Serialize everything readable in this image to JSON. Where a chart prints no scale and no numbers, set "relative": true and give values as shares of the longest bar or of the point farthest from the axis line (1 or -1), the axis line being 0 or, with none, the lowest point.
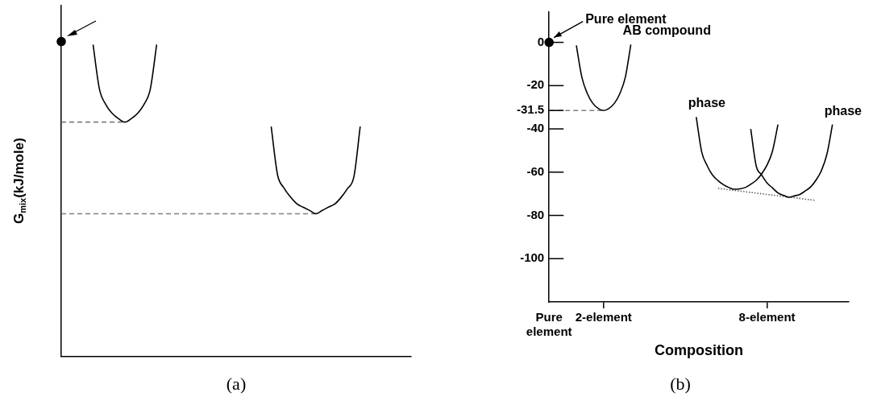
{
  "chart_data": [
    {
      "type": "line",
      "title": "(a)",
      "ylabel": "G$_{mix}$(kJ/mole)",
      "relative": true,
      "tick_labels": false,
      "marker": "none",
      "line_style": "solid",
      "categories": [
        null,
        null,
        null,
        null,
        null,
        null,
        null,
        null,
        null,
        null,
        null,
        null,
        null,
        null,
        null,
        null,
        null,
        null,
        null,
        null,
        null,
        null,
        null,
        null,
        null,
        null,
        null,
        null,
        null,
        null,
        null,
        null,
        null,
        null,
        null,
        null,
        null,
        null,
        null,
        null,
        null,
        null,
        null,
        null,
        null,
        null,
        null,
        null,
        null,
        null,
        null,
        null,
        null,
        null,
        null,
        null
      ],
      "series": [
        {
          "marker": "circle",
          "color": "#000000",
          "values": [
            1,
            null,
            null,
            null,
            null,
            null,
            null,
            null,
            null,
            null,
            null,
            null,
            null,
            null,
            null,
            null,
            null,
            null,
            null,
            null,
            null,
            null,
            null,
            null,
            null,
            null,
            null,
            null,
            null,
            null,
            null,
            null,
            null,
            null,
            null,
            null,
            null,
            null,
            null,
            null,
            null,
            null,
            null,
            null,
            null,
            null,
            null,
            null,
            null,
            null,
            null,
            null,
            null,
            null,
            null,
            null
          ]
        },
        {
          "color": "#000000",
          "values": [
            null,
            null,
            null,
            null,
            null,
            0.99,
            0.849,
            0.8,
            0.772,
            0.755,
            0.744,
            0.755,
            0.772,
            0.8,
            0.849,
            0.99,
            null,
            null,
            null,
            null,
            null,
            null,
            null,
            null,
            null,
            null,
            null,
            null,
            null,
            null,
            null,
            null,
            null,
            null,
            null,
            null,
            null,
            null,
            null,
            null,
            null,
            null,
            null,
            null,
            null,
            null,
            null,
            null,
            null,
            null,
            null,
            null,
            null,
            null,
            null,
            null
          ]
        },
        {
          "color": "#000000",
          "values": [
            null,
            null,
            null,
            null,
            null,
            null,
            null,
            null,
            null,
            null,
            null,
            null,
            null,
            null,
            null,
            null,
            null,
            null,
            null,
            null,
            null,
            null,
            null,
            null,
            null,
            null,
            null,
            null,
            null,
            null,
            null,
            null,
            null,
            0.73,
            0.577,
            0.535,
            0.507,
            0.485,
            0.474,
            0.464,
            0.453,
            0.463,
            0.474,
            0.484,
            0.505,
            0.533,
            0.57,
            0.73,
            null,
            null,
            null,
            null,
            null,
            null,
            null,
            null
          ]
        },
        {
          "color": "#808080",
          "line_style": "dashed",
          "values": [
            0.744,
            null,
            null,
            null,
            null,
            null,
            null,
            null,
            null,
            null,
            0.744,
            null,
            null,
            null,
            null,
            null,
            null,
            null,
            null,
            null,
            null,
            null,
            null,
            null,
            null,
            null,
            null,
            null,
            null,
            null,
            null,
            null,
            null,
            null,
            null,
            null,
            null,
            null,
            null,
            null,
            null,
            null,
            null,
            null,
            null,
            null,
            null,
            null,
            null,
            null,
            null,
            null,
            null,
            null,
            null,
            null
          ]
        },
        {
          "color": "#808080",
          "line_style": "dashed",
          "values": [
            0.453,
            null,
            null,
            null,
            null,
            null,
            null,
            null,
            null,
            null,
            null,
            null,
            null,
            null,
            null,
            null,
            null,
            null,
            null,
            null,
            null,
            null,
            null,
            null,
            null,
            null,
            null,
            null,
            null,
            null,
            null,
            null,
            null,
            null,
            null,
            null,
            null,
            null,
            null,
            null,
            0.453,
            null,
            null,
            null,
            null,
            null,
            null,
            null,
            null,
            null,
            null,
            null,
            null,
            null,
            null,
            null
          ]
        }
      ]
    },
    {
      "type": "line",
      "title": "(b)",
      "xlabel": "Composition",
      "ylim": [
        -120,
        14
      ],
      "yticks": [
        0,
        -20,
        -31.5,
        -40,
        -60,
        -80,
        -100
      ],
      "marker": "none",
      "line_style": "solid",
      "categories": [
        "Pure element",
        null,
        null,
        null,
        null,
        null,
        null,
        null,
        null,
        null,
        "2-element",
        null,
        null,
        null,
        null,
        null,
        null,
        null,
        null,
        null,
        null,
        null,
        null,
        null,
        null,
        null,
        null,
        null,
        null,
        null,
        null,
        null,
        null,
        null,
        null,
        null,
        null,
        null,
        null,
        null,
        "8-element",
        null,
        null,
        null,
        null,
        null,
        null,
        null,
        null,
        null,
        null,
        null,
        null,
        null,
        null,
        null
      ],
      "annotations": [
        {
          "text": "Pure element",
          "x": "Pure element",
          "y": 0
        }
      ],
      "series": [
        {
          "marker": "circle",
          "color": "#000000",
          "values": [
            0,
            null,
            null,
            null,
            null,
            null,
            null,
            null,
            null,
            null,
            null,
            null,
            null,
            null,
            null,
            null,
            null,
            null,
            null,
            null,
            null,
            null,
            null,
            null,
            null,
            null,
            null,
            null,
            null,
            null,
            null,
            null,
            null,
            null,
            null,
            null,
            null,
            null,
            null,
            null,
            null,
            null,
            null,
            null,
            null,
            null,
            null,
            null,
            null,
            null,
            null,
            null,
            null,
            null,
            null,
            null
          ]
        },
        {
          "name": "AB compound",
          "color": "#000000",
          "values": [
            null,
            null,
            null,
            null,
            null,
            -1.4,
            -16,
            -23.6,
            -28.1,
            -30.5,
            -31.5,
            -30.5,
            -28.1,
            -23.6,
            -16,
            -1,
            null,
            null,
            null,
            null,
            null,
            null,
            null,
            null,
            null,
            null,
            null,
            null,
            null,
            null,
            null,
            null,
            null,
            null,
            null,
            null,
            null,
            null,
            null,
            null,
            null,
            null,
            null,
            null,
            null,
            null,
            null,
            null,
            null,
            null,
            null,
            null,
            null,
            null,
            null,
            null
          ]
        },
        {
          "color": "#808080",
          "line_style": "dashed",
          "values": [
            -31.5,
            null,
            null,
            null,
            null,
            null,
            null,
            null,
            null,
            null,
            -31.5,
            null,
            null,
            null,
            null,
            null,
            null,
            null,
            null,
            null,
            null,
            null,
            null,
            null,
            null,
            null,
            null,
            null,
            null,
            null,
            null,
            null,
            null,
            null,
            null,
            null,
            null,
            null,
            null,
            null,
            null,
            null,
            null,
            null,
            null,
            null,
            null,
            null,
            null,
            null,
            null,
            null,
            null,
            null,
            null,
            null
          ]
        },
        {
          "name": "phase",
          "color": "#000000",
          "values": [
            null,
            null,
            null,
            null,
            null,
            null,
            null,
            null,
            null,
            null,
            null,
            null,
            null,
            null,
            null,
            null,
            null,
            null,
            null,
            null,
            null,
            null,
            null,
            null,
            null,
            null,
            null,
            -34.5,
            -50.6,
            -57,
            -61.4,
            -63.9,
            -65.8,
            -67.1,
            -67.9,
            -67.7,
            -67.1,
            -65.6,
            -63.8,
            -60.8,
            -56.7,
            -50.2,
            -38,
            null,
            null,
            null,
            null,
            null,
            null,
            null,
            null,
            null,
            null,
            null,
            null,
            null
          ]
        },
        {
          "name": "phase",
          "color": "#000000",
          "values": [
            null,
            null,
            null,
            null,
            null,
            null,
            null,
            null,
            null,
            null,
            null,
            null,
            null,
            null,
            null,
            null,
            null,
            null,
            null,
            null,
            null,
            null,
            null,
            null,
            null,
            null,
            null,
            null,
            null,
            null,
            null,
            null,
            null,
            null,
            null,
            null,
            null,
            -40,
            -57.1,
            -61.3,
            -65,
            -67.3,
            -69.6,
            -70.7,
            -71.6,
            -71,
            -70.3,
            -68.7,
            -66.8,
            -63.6,
            -59.1,
            -51.5,
            -38,
            null,
            null,
            null
          ]
        },
        {
          "color": "#606060",
          "line_style": "dotted",
          "values": [
            null,
            null,
            null,
            null,
            null,
            null,
            null,
            null,
            null,
            null,
            null,
            null,
            null,
            null,
            null,
            null,
            null,
            null,
            null,
            null,
            null,
            null,
            null,
            null,
            null,
            null,
            null,
            null,
            null,
            null,
            null,
            -67.5,
            null,
            null,
            null,
            null,
            null,
            null,
            null,
            null,
            null,
            null,
            null,
            null,
            null,
            null,
            null,
            null,
            null,
            -73.1,
            null,
            null,
            null,
            null,
            null,
            null
          ]
        }
      ]
    }
  ]
}
